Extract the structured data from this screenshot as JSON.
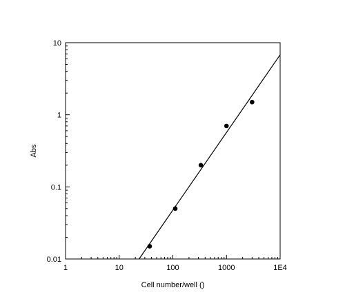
{
  "chart_data": {
    "type": "scatter",
    "title": "",
    "xlabel": "Cell number/well ()",
    "ylabel": "Abs",
    "x_scale": "log",
    "y_scale": "log",
    "xlim": [
      1,
      10000
    ],
    "ylim": [
      0.01,
      10
    ],
    "grid": false,
    "x_tick_labels": [
      {
        "value": 1,
        "label": "1"
      },
      {
        "value": 10,
        "label": "10"
      },
      {
        "value": 100,
        "label": "100"
      },
      {
        "value": 1000,
        "label": "1000"
      },
      {
        "value": 10000,
        "label": "1E4"
      }
    ],
    "y_tick_labels": [
      {
        "value": 0.01,
        "label": "0.01"
      },
      {
        "value": 0.1,
        "label": "0.1"
      },
      {
        "value": 1,
        "label": "1"
      },
      {
        "value": 10,
        "label": "10"
      }
    ],
    "series": [
      {
        "type": "scatter",
        "x": [
          37,
          111,
          333,
          1000,
          3000
        ],
        "y": [
          0.015,
          0.05,
          0.2,
          0.7,
          1.5
        ]
      }
    ],
    "fit_line": {
      "x": [
        23.5,
        10000
      ],
      "y": [
        0.01,
        6.8
      ]
    }
  }
}
